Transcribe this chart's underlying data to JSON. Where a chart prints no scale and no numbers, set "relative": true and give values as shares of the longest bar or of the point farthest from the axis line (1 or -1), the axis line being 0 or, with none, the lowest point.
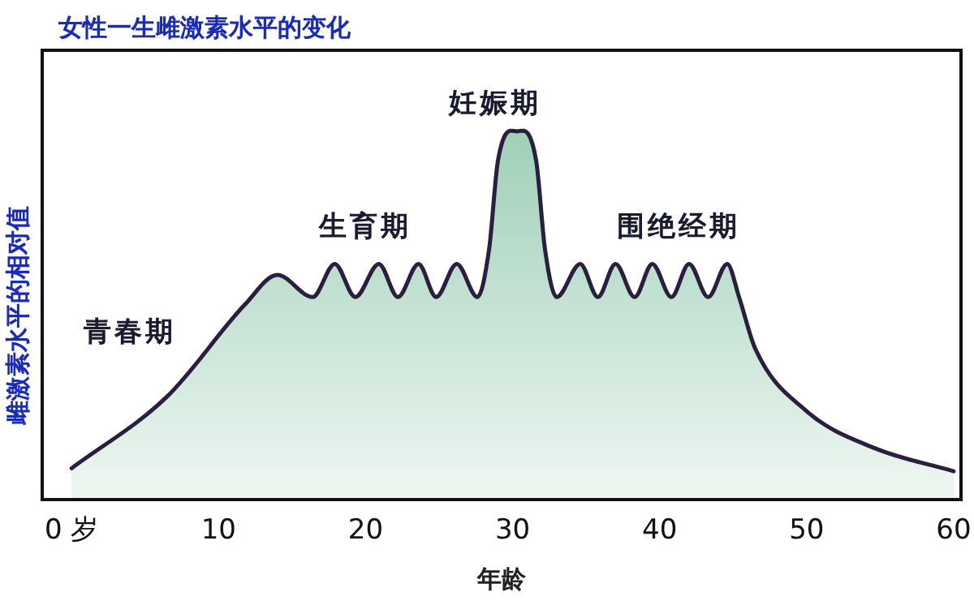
{
  "chart_data": {
    "type": "area",
    "relative": true,
    "title": "女性一生雌激素水平的变化",
    "xlabel": "年龄",
    "ylabel": "雌激素水平的相对值",
    "xlim": [
      -2,
      60.5
    ],
    "xticks": [
      {
        "value": 0,
        "label": "0 岁"
      },
      10,
      20,
      30,
      40,
      50,
      60
    ],
    "annotations": [
      "青春期",
      "生育期",
      "妊娠期",
      "围绝经期"
    ],
    "series": [
      {
        "color": "#2b1f3f",
        "x": [
          0,
          6.5,
          11.8,
          14,
          16.4,
          17.9,
          19.3,
          20.9,
          22.2,
          23.6,
          24.8,
          26.2,
          27.6,
          28.4,
          29,
          30.3,
          31.6,
          32.2,
          33,
          34.6,
          35.8,
          37,
          38.3,
          39.5,
          40.8,
          42,
          43.3,
          44.6,
          45.4,
          46.5,
          50,
          54.6,
          60
        ],
        "values": [
          0.085,
          0.28,
          0.53,
          0.61,
          0.55,
          0.64,
          0.55,
          0.64,
          0.55,
          0.64,
          0.55,
          0.64,
          0.55,
          0.68,
          0.92,
          1,
          0.92,
          0.68,
          0.55,
          0.64,
          0.55,
          0.64,
          0.55,
          0.64,
          0.55,
          0.64,
          0.55,
          0.64,
          0.55,
          0.41,
          0.24,
          0.14,
          0.077
        ]
      }
    ]
  }
}
